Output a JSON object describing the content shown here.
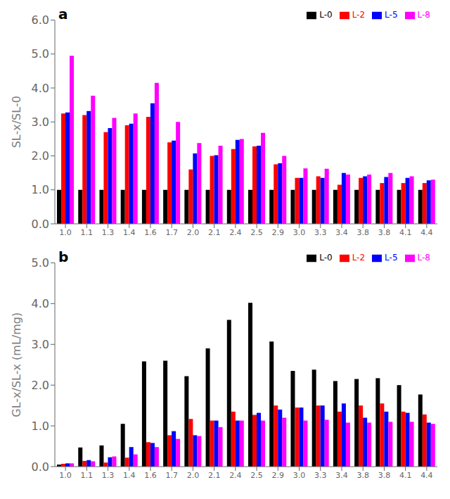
{
  "chart_data": [
    {
      "type": "bar",
      "categories": [
        "1.0",
        "1.1",
        "1.3",
        "1.4",
        "1.6",
        "1.7",
        "2.0",
        "2.1",
        "2.4",
        "2.5",
        "2.9",
        "3.0",
        "3.3",
        "3.4",
        "3.8",
        "3.8",
        "4.1",
        "4.4"
      ],
      "series": [
        {
          "name": "L-0",
          "color": "#000000",
          "values": [
            1.0,
            1.0,
            1.0,
            1.0,
            1.0,
            1.0,
            1.0,
            1.0,
            1.0,
            1.0,
            1.0,
            1.0,
            1.0,
            1.0,
            1.0,
            1.0,
            1.0,
            1.0
          ]
        },
        {
          "name": "L-2",
          "color": "#ff0000",
          "values": [
            3.25,
            3.2,
            2.7,
            2.9,
            3.15,
            2.4,
            1.6,
            2.0,
            2.2,
            2.28,
            1.75,
            1.35,
            1.4,
            1.15,
            1.35,
            1.2,
            1.2,
            1.2
          ]
        },
        {
          "name": "L-5",
          "color": "#0000ff",
          "values": [
            3.28,
            3.32,
            2.82,
            2.95,
            3.55,
            2.45,
            2.07,
            2.02,
            2.47,
            2.3,
            1.78,
            1.35,
            1.35,
            1.5,
            1.4,
            1.38,
            1.35,
            1.28
          ]
        },
        {
          "name": "L-8",
          "color": "#ff00ff",
          "values": [
            4.95,
            3.77,
            3.12,
            3.25,
            4.15,
            3.0,
            2.38,
            2.3,
            2.5,
            2.68,
            2.0,
            1.63,
            1.62,
            1.45,
            1.45,
            1.5,
            1.4,
            1.3
          ]
        }
      ],
      "ylabel": "SL-x/SL-0",
      "annotations": [
        "a"
      ],
      "ylim": [
        0.0,
        6.0
      ],
      "yticks": [
        {
          "value": 0,
          "label": "0.0"
        },
        {
          "value": 1,
          "label": "1.0"
        },
        {
          "value": 2,
          "label": "2.0"
        },
        {
          "value": 3,
          "label": "3.0"
        },
        {
          "value": 4,
          "label": "4.0"
        },
        {
          "value": 5,
          "label": "5.0"
        },
        {
          "value": 6,
          "label": "6.0"
        }
      ],
      "legend": "upper right",
      "grid": false
    },
    {
      "type": "bar",
      "categories": [
        "1.0",
        "1.1",
        "1.3",
        "1.4",
        "1.6",
        "1.7",
        "2.0",
        "2.1",
        "2.4",
        "2.5",
        "2.9",
        "3.0",
        "3.3",
        "3.4",
        "3.8",
        "3.8",
        "4.1",
        "4.4"
      ],
      "series": [
        {
          "name": "L-0",
          "color": "#000000",
          "values": [
            0.05,
            0.47,
            0.52,
            1.05,
            2.58,
            2.6,
            2.22,
            2.9,
            3.6,
            4.02,
            3.07,
            2.35,
            2.38,
            2.1,
            2.15,
            2.17,
            2.0,
            1.77
          ]
        },
        {
          "name": "L-2",
          "color": "#ff0000",
          "values": [
            0.07,
            0.14,
            0.1,
            0.22,
            0.6,
            0.77,
            1.17,
            1.13,
            1.35,
            1.27,
            1.5,
            1.45,
            1.5,
            1.35,
            1.5,
            1.55,
            1.35,
            1.28
          ]
        },
        {
          "name": "L-5",
          "color": "#0000ff",
          "values": [
            0.08,
            0.16,
            0.23,
            0.48,
            0.58,
            0.87,
            0.77,
            1.13,
            1.13,
            1.32,
            1.4,
            1.45,
            1.5,
            1.55,
            1.2,
            1.35,
            1.32,
            1.08
          ]
        },
        {
          "name": "L-8",
          "color": "#ff00ff",
          "values": [
            0.08,
            0.13,
            0.25,
            0.3,
            0.48,
            0.68,
            0.75,
            0.97,
            1.13,
            1.13,
            1.2,
            1.13,
            1.15,
            1.08,
            1.08,
            1.1,
            1.1,
            1.05
          ]
        }
      ],
      "ylabel": "GL-x/SL-x (mL/mg)",
      "annotations": [
        "b"
      ],
      "ylim": [
        0.0,
        5.0
      ],
      "yticks": [
        {
          "value": 0,
          "label": "0.0"
        },
        {
          "value": 1,
          "label": "1.0"
        },
        {
          "value": 2,
          "label": "2.0"
        },
        {
          "value": 3,
          "label": "3.0"
        },
        {
          "value": 4,
          "label": "4.0"
        },
        {
          "value": 5,
          "label": "5.0"
        }
      ],
      "legend": "upper right",
      "grid": false
    }
  ]
}
